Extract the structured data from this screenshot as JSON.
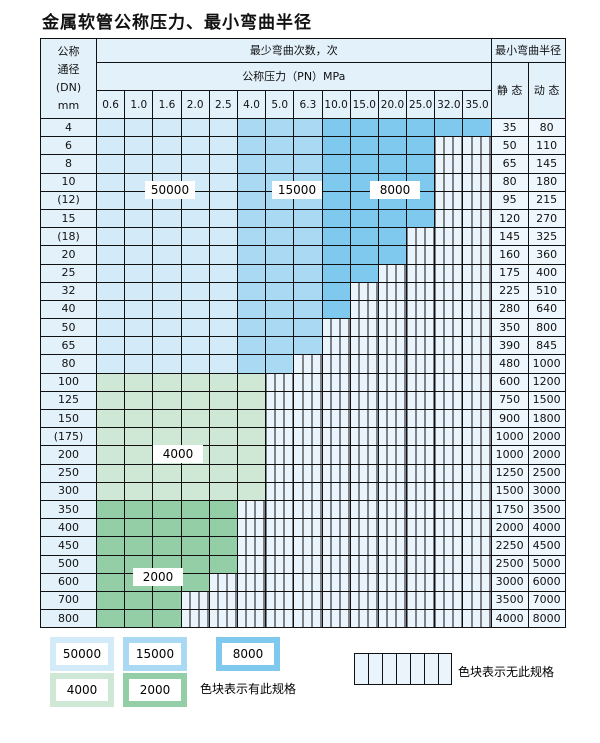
{
  "title": "金属软管公称压力、最小弯曲半径",
  "header": {
    "dn_label": [
      "公称",
      "通径",
      "(DN)",
      "mm"
    ],
    "cycles_label": "最少弯曲次数，次",
    "pressure_label": "公称压力（PN）MPa",
    "radius_label": "最小弯曲半径",
    "static_label": "静 态",
    "dynamic_label": "动 态",
    "pressures": [
      "0.6",
      "1.0",
      "1.6",
      "2.0",
      "2.5",
      "4.0",
      "5.0",
      "6.3",
      "10.0",
      "15.0",
      "20.0",
      "25.0",
      "32.0",
      "35.0"
    ]
  },
  "rows": [
    {
      "dn": "4",
      "cycles": [
        50000,
        50000,
        50000,
        50000,
        50000,
        15000,
        15000,
        15000,
        8000,
        8000,
        8000,
        8000,
        8000,
        8000
      ],
      "static": "35",
      "dynamic": "80"
    },
    {
      "dn": "6",
      "cycles": [
        50000,
        50000,
        50000,
        50000,
        50000,
        15000,
        15000,
        15000,
        8000,
        8000,
        8000,
        8000,
        null,
        null
      ],
      "static": "50",
      "dynamic": "110"
    },
    {
      "dn": "8",
      "cycles": [
        50000,
        50000,
        50000,
        50000,
        50000,
        15000,
        15000,
        15000,
        8000,
        8000,
        8000,
        8000,
        null,
        null
      ],
      "static": "65",
      "dynamic": "145"
    },
    {
      "dn": "10",
      "cycles": [
        50000,
        50000,
        50000,
        50000,
        50000,
        15000,
        15000,
        15000,
        8000,
        8000,
        8000,
        8000,
        null,
        null
      ],
      "static": "80",
      "dynamic": "180"
    },
    {
      "dn": "(12)",
      "cycles": [
        50000,
        50000,
        50000,
        50000,
        50000,
        15000,
        15000,
        15000,
        8000,
        8000,
        8000,
        8000,
        null,
        null
      ],
      "static": "95",
      "dynamic": "215"
    },
    {
      "dn": "15",
      "cycles": [
        50000,
        50000,
        50000,
        50000,
        50000,
        15000,
        15000,
        15000,
        8000,
        8000,
        8000,
        8000,
        null,
        null
      ],
      "static": "120",
      "dynamic": "270"
    },
    {
      "dn": "(18)",
      "cycles": [
        50000,
        50000,
        50000,
        50000,
        50000,
        15000,
        15000,
        15000,
        8000,
        8000,
        8000,
        null,
        null,
        null
      ],
      "static": "145",
      "dynamic": "325"
    },
    {
      "dn": "20",
      "cycles": [
        50000,
        50000,
        50000,
        50000,
        50000,
        15000,
        15000,
        15000,
        8000,
        8000,
        8000,
        null,
        null,
        null
      ],
      "static": "160",
      "dynamic": "360"
    },
    {
      "dn": "25",
      "cycles": [
        50000,
        50000,
        50000,
        50000,
        50000,
        15000,
        15000,
        15000,
        8000,
        8000,
        null,
        null,
        null,
        null
      ],
      "static": "175",
      "dynamic": "400"
    },
    {
      "dn": "32",
      "cycles": [
        50000,
        50000,
        50000,
        50000,
        50000,
        15000,
        15000,
        15000,
        8000,
        null,
        null,
        null,
        null,
        null
      ],
      "static": "225",
      "dynamic": "510"
    },
    {
      "dn": "40",
      "cycles": [
        50000,
        50000,
        50000,
        50000,
        50000,
        15000,
        15000,
        15000,
        8000,
        null,
        null,
        null,
        null,
        null
      ],
      "static": "280",
      "dynamic": "640"
    },
    {
      "dn": "50",
      "cycles": [
        50000,
        50000,
        50000,
        50000,
        50000,
        15000,
        15000,
        15000,
        null,
        null,
        null,
        null,
        null,
        null
      ],
      "static": "350",
      "dynamic": "800"
    },
    {
      "dn": "65",
      "cycles": [
        50000,
        50000,
        50000,
        50000,
        50000,
        15000,
        15000,
        15000,
        null,
        null,
        null,
        null,
        null,
        null
      ],
      "static": "390",
      "dynamic": "845"
    },
    {
      "dn": "80",
      "cycles": [
        50000,
        50000,
        50000,
        50000,
        50000,
        15000,
        15000,
        null,
        null,
        null,
        null,
        null,
        null,
        null
      ],
      "static": "480",
      "dynamic": "1000"
    },
    {
      "dn": "100",
      "cycles": [
        4000,
        4000,
        4000,
        4000,
        4000,
        4000,
        null,
        null,
        null,
        null,
        null,
        null,
        null,
        null
      ],
      "static": "600",
      "dynamic": "1200"
    },
    {
      "dn": "125",
      "cycles": [
        4000,
        4000,
        4000,
        4000,
        4000,
        4000,
        null,
        null,
        null,
        null,
        null,
        null,
        null,
        null
      ],
      "static": "750",
      "dynamic": "1500"
    },
    {
      "dn": "150",
      "cycles": [
        4000,
        4000,
        4000,
        4000,
        4000,
        4000,
        null,
        null,
        null,
        null,
        null,
        null,
        null,
        null
      ],
      "static": "900",
      "dynamic": "1800"
    },
    {
      "dn": "(175)",
      "cycles": [
        4000,
        4000,
        4000,
        4000,
        4000,
        4000,
        null,
        null,
        null,
        null,
        null,
        null,
        null,
        null
      ],
      "static": "1000",
      "dynamic": "2000"
    },
    {
      "dn": "200",
      "cycles": [
        4000,
        4000,
        4000,
        4000,
        4000,
        4000,
        null,
        null,
        null,
        null,
        null,
        null,
        null,
        null
      ],
      "static": "1000",
      "dynamic": "2000"
    },
    {
      "dn": "250",
      "cycles": [
        4000,
        4000,
        4000,
        4000,
        4000,
        4000,
        null,
        null,
        null,
        null,
        null,
        null,
        null,
        null
      ],
      "static": "1250",
      "dynamic": "2500"
    },
    {
      "dn": "300",
      "cycles": [
        4000,
        4000,
        4000,
        4000,
        4000,
        4000,
        null,
        null,
        null,
        null,
        null,
        null,
        null,
        null
      ],
      "static": "1500",
      "dynamic": "3000"
    },
    {
      "dn": "350",
      "cycles": [
        2000,
        2000,
        2000,
        2000,
        2000,
        null,
        null,
        null,
        null,
        null,
        null,
        null,
        null,
        null
      ],
      "static": "1750",
      "dynamic": "3500"
    },
    {
      "dn": "400",
      "cycles": [
        2000,
        2000,
        2000,
        2000,
        2000,
        null,
        null,
        null,
        null,
        null,
        null,
        null,
        null,
        null
      ],
      "static": "2000",
      "dynamic": "4000"
    },
    {
      "dn": "450",
      "cycles": [
        2000,
        2000,
        2000,
        2000,
        2000,
        null,
        null,
        null,
        null,
        null,
        null,
        null,
        null,
        null
      ],
      "static": "2250",
      "dynamic": "4500"
    },
    {
      "dn": "500",
      "cycles": [
        2000,
        2000,
        2000,
        2000,
        2000,
        null,
        null,
        null,
        null,
        null,
        null,
        null,
        null,
        null
      ],
      "static": "2500",
      "dynamic": "5000"
    },
    {
      "dn": "600",
      "cycles": [
        2000,
        2000,
        2000,
        2000,
        null,
        null,
        null,
        null,
        null,
        null,
        null,
        null,
        null,
        null
      ],
      "static": "3000",
      "dynamic": "6000"
    },
    {
      "dn": "700",
      "cycles": [
        2000,
        2000,
        2000,
        null,
        null,
        null,
        null,
        null,
        null,
        null,
        null,
        null,
        null,
        null
      ],
      "static": "3500",
      "dynamic": "7000"
    },
    {
      "dn": "800",
      "cycles": [
        2000,
        2000,
        2000,
        null,
        null,
        null,
        null,
        null,
        null,
        null,
        null,
        null,
        null,
        null
      ],
      "static": "4000",
      "dynamic": "8000"
    }
  ],
  "zone_labels": {
    "a": "50000",
    "b": "15000",
    "c": "8000",
    "d": "4000",
    "e": "2000"
  },
  "legend": {
    "items": [
      "50000",
      "15000",
      "8000",
      "4000",
      "2000"
    ],
    "available_text": "色块表示有此规格",
    "unavailable_text": "色块表示无此规格"
  },
  "colors": {
    "50000": "#d3eaf8",
    "15000": "#a9d9f3",
    "8000": "#80c9ee",
    "4000": "#cfe7d5",
    "2000": "#94cea7",
    "none": "#eaf4fc"
  }
}
